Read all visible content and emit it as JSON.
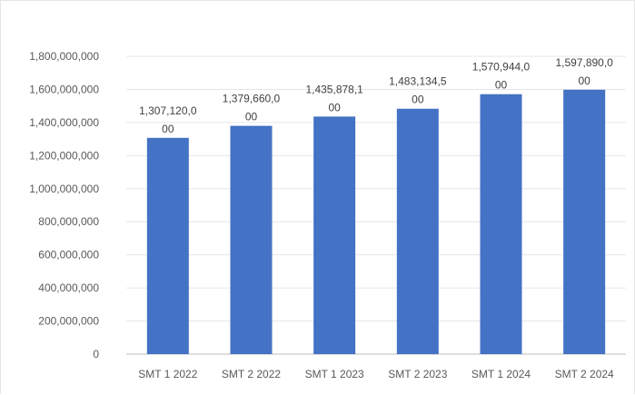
{
  "chart_data": {
    "type": "bar",
    "categories": [
      "SMT 1 2022",
      "SMT 2 2022",
      "SMT 1 2023",
      "SMT 2 2023",
      "SMT 1 2024",
      "SMT 2 2024"
    ],
    "values": [
      1307120000,
      1379660000,
      1435878100,
      1483134500,
      1570944000,
      1597890000
    ],
    "data_labels": [
      [
        "1,307,120,0",
        "00"
      ],
      [
        "1,379,660,0",
        "00"
      ],
      [
        "1,435,878,1",
        "00"
      ],
      [
        "1,483,134,5",
        "00"
      ],
      [
        "1,570,944,0",
        "00"
      ],
      [
        "1,597,890,0",
        "00"
      ]
    ],
    "y_ticks": [
      "0",
      "200,000,000",
      "400,000,000",
      "600,000,000",
      "800,000,000",
      "1,000,000,000",
      "1,200,000,000",
      "1,400,000,000",
      "1,600,000,000",
      "1,800,000,000"
    ],
    "ylim": [
      0,
      1800000000
    ],
    "grid": true,
    "bar_color": "#4472c4",
    "title": "",
    "xlabel": "",
    "ylabel": ""
  }
}
